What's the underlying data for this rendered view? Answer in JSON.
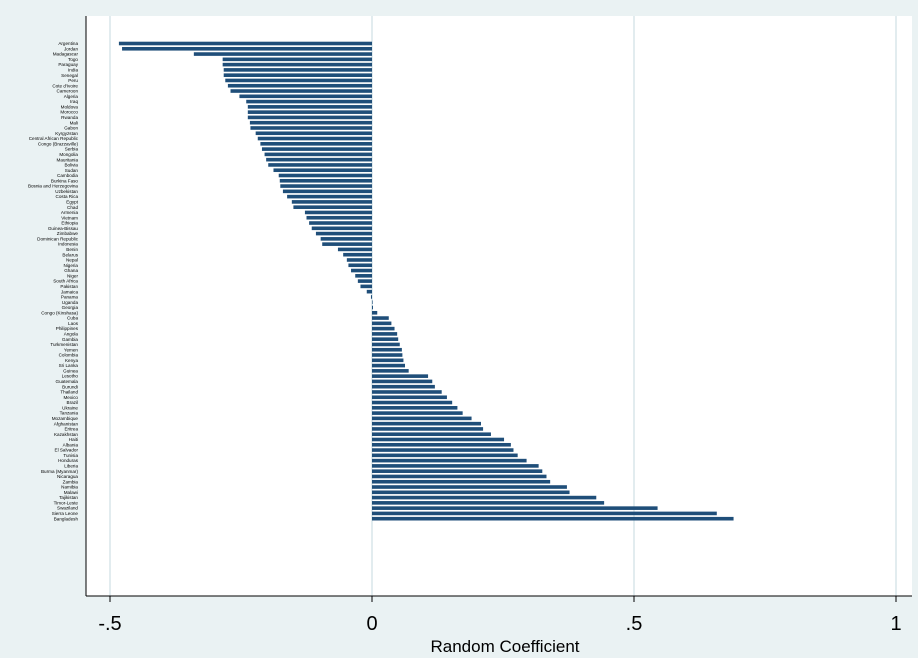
{
  "chart_data": {
    "type": "bar",
    "orientation": "horizontal",
    "xlabel": "Random Coefficient",
    "ylabel": "",
    "xlim": [
      -0.55,
      1
    ],
    "xticks": [
      -0.5,
      0,
      0.5,
      1
    ],
    "xtick_labels": [
      "-.5",
      "0",
      ".5",
      "1"
    ],
    "grid": "vertical lines at x ticks",
    "colors": {
      "bar": "#1f4e79",
      "background": "#eaf2f3",
      "plot_area": "#ffffff",
      "grid": "#d8e6ea",
      "axis": "#000000"
    },
    "categories": [
      "Argentina",
      "Jordan",
      "Madagascar",
      "Togo",
      "Paraguay",
      "India",
      "Senegal",
      "Peru",
      "Cote d'Ivoire",
      "Cameroon",
      "Algeria",
      "Iraq",
      "Moldova",
      "Morocco",
      "Rwanda",
      "Mali",
      "Gabon",
      "Kyrgyzstan",
      "Central African Republic",
      "Congo (Brazzaville)",
      "Serbia",
      "Mongolia",
      "Mauritania",
      "Bolivia",
      "Sudan",
      "Cambodia",
      "Burkina Faso",
      "Bosnia and Herzegovina",
      "Uzbekistan",
      "Costa Rica",
      "Egypt",
      "Chad",
      "Armenia",
      "Vietnam",
      "Ethiopia",
      "Guinea-Bissau",
      "Zimbabwe",
      "Dominican Republic",
      "Indonesia",
      "Benin",
      "Belarus",
      "Nepal",
      "Nigeria",
      "Ghana",
      "Niger",
      "South Africa",
      "Pakistan",
      "Jamaica",
      "Panama",
      "Uganda",
      "Georgia",
      "Congo (Kinshasa)",
      "Cuba",
      "Laos",
      "Philippines",
      "Angola",
      "Gambia",
      "Turkmenistan",
      "Yemen",
      "Colombia",
      "Kenya",
      "Sri Lanka",
      "Guinea",
      "Lesotho",
      "Guatemala",
      "Burundi",
      "Thailand",
      "Mexico",
      "Brazil",
      "Ukraine",
      "Tanzania",
      "Mozambique",
      "Afghanistan",
      "Eritrea",
      "Kazakhstan",
      "Haiti",
      "Albania",
      "El Salvador",
      "Tunisia",
      "Honduras",
      "Liberia",
      "Burma (Myanmar)",
      "Nicaragua",
      "Zambia",
      "Namibia",
      "Malawi",
      "Tajikistan",
      "Timor-Leste",
      "Swaziland",
      "Sierra Leone",
      "Bangladesh"
    ],
    "values": [
      -0.483,
      -0.477,
      -0.34,
      -0.285,
      -0.285,
      -0.283,
      -0.283,
      -0.28,
      -0.275,
      -0.27,
      -0.253,
      -0.24,
      -0.237,
      -0.237,
      -0.237,
      -0.233,
      -0.232,
      -0.222,
      -0.218,
      -0.213,
      -0.21,
      -0.205,
      -0.202,
      -0.198,
      -0.188,
      -0.178,
      -0.176,
      -0.175,
      -0.17,
      -0.162,
      -0.153,
      -0.15,
      -0.128,
      -0.125,
      -0.12,
      -0.115,
      -0.107,
      -0.098,
      -0.095,
      -0.065,
      -0.055,
      -0.048,
      -0.045,
      -0.04,
      -0.032,
      -0.027,
      -0.022,
      -0.01,
      -0.002,
      0.0,
      0.001,
      0.01,
      0.032,
      0.037,
      0.043,
      0.048,
      0.05,
      0.053,
      0.057,
      0.058,
      0.06,
      0.063,
      0.07,
      0.107,
      0.115,
      0.12,
      0.133,
      0.143,
      0.153,
      0.163,
      0.173,
      0.19,
      0.208,
      0.212,
      0.227,
      0.252,
      0.265,
      0.27,
      0.278,
      0.295,
      0.318,
      0.325,
      0.333,
      0.34,
      0.372,
      0.377,
      0.428,
      0.443,
      0.545,
      0.658,
      0.69
    ]
  }
}
